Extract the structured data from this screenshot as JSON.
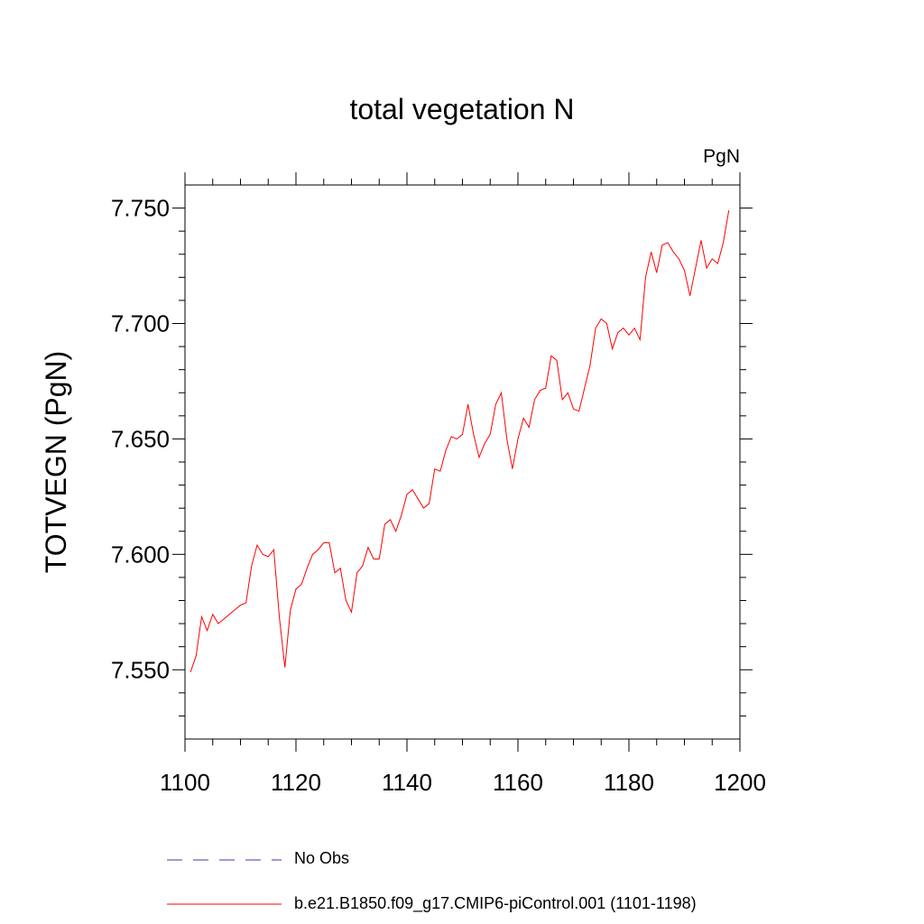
{
  "chart_data": {
    "type": "line",
    "title": "total vegetation N",
    "units_label": "PgN",
    "ylabel": "TOTVEGN  (PgN)",
    "xlabel": "",
    "xlim": [
      1100,
      1200
    ],
    "ylim": [
      7.52,
      7.76
    ],
    "x_ticks": [
      1100,
      1120,
      1140,
      1160,
      1180,
      1200
    ],
    "x_tick_labels": [
      "1100",
      "1120",
      "1140",
      "1160",
      "1180",
      "1200"
    ],
    "y_ticks": [
      7.55,
      7.6,
      7.65,
      7.7,
      7.75
    ],
    "y_tick_labels": [
      "7.550",
      "7.600",
      "7.650",
      "7.700",
      "7.750"
    ],
    "grid": false,
    "legend_position": "bottom",
    "series": [
      {
        "name": "b.e21.B1850.f09_g17.CMIP6-piControl.001 (1101-1198)",
        "color": "#ff0000",
        "line_style": "solid",
        "x": [
          1101,
          1102,
          1103,
          1104,
          1105,
          1106,
          1107,
          1108,
          1109,
          1110,
          1111,
          1112,
          1113,
          1114,
          1115,
          1116,
          1117,
          1118,
          1119,
          1120,
          1121,
          1122,
          1123,
          1124,
          1125,
          1126,
          1127,
          1128,
          1129,
          1130,
          1131,
          1132,
          1133,
          1134,
          1135,
          1136,
          1137,
          1138,
          1139,
          1140,
          1141,
          1142,
          1143,
          1144,
          1145,
          1146,
          1147,
          1148,
          1149,
          1150,
          1151,
          1152,
          1153,
          1154,
          1155,
          1156,
          1157,
          1158,
          1159,
          1160,
          1161,
          1162,
          1163,
          1164,
          1165,
          1166,
          1167,
          1168,
          1169,
          1170,
          1171,
          1172,
          1173,
          1174,
          1175,
          1176,
          1177,
          1178,
          1179,
          1180,
          1181,
          1182,
          1183,
          1184,
          1185,
          1186,
          1187,
          1188,
          1189,
          1190,
          1191,
          1192,
          1193,
          1194,
          1195,
          1196,
          1197,
          1198
        ],
        "values": [
          7.549,
          7.556,
          7.573,
          7.567,
          7.574,
          7.57,
          7.572,
          7.574,
          7.576,
          7.578,
          7.579,
          7.595,
          7.604,
          7.6,
          7.599,
          7.602,
          7.573,
          7.551,
          7.576,
          7.585,
          7.587,
          7.594,
          7.6,
          7.602,
          7.605,
          7.605,
          7.592,
          7.594,
          7.58,
          7.575,
          7.592,
          7.595,
          7.603,
          7.598,
          7.598,
          7.613,
          7.615,
          7.61,
          7.617,
          7.626,
          7.628,
          7.624,
          7.62,
          7.622,
          7.637,
          7.636,
          7.645,
          7.651,
          7.65,
          7.652,
          7.665,
          7.652,
          7.642,
          7.648,
          7.652,
          7.665,
          7.67,
          7.65,
          7.637,
          7.65,
          7.659,
          7.655,
          7.667,
          7.671,
          7.672,
          7.686,
          7.684,
          7.667,
          7.67,
          7.663,
          7.662,
          7.672,
          7.682,
          7.698,
          7.702,
          7.7,
          7.689,
          7.696,
          7.698,
          7.695,
          7.698,
          7.693,
          7.72,
          7.731,
          7.722,
          7.734,
          7.735,
          7.731,
          7.728,
          7.723,
          7.712,
          7.724,
          7.736,
          7.724,
          7.728,
          7.726,
          7.735,
          7.749
        ]
      },
      {
        "name": "No Obs",
        "color": "#3a3aa8",
        "line_style": "dashed",
        "x": [],
        "values": []
      }
    ]
  }
}
